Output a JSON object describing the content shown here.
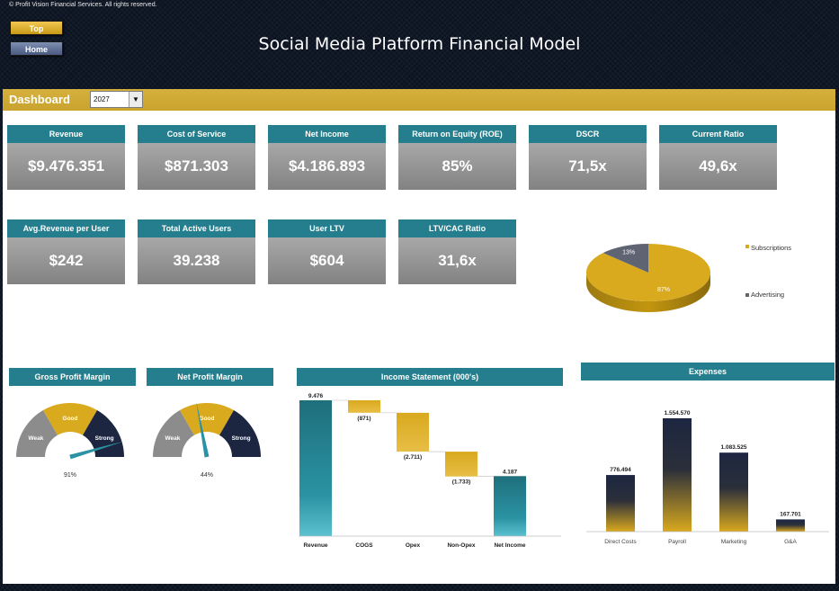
{
  "copyright": "© Profit Vision Financial Services. All rights reserved.",
  "nav": {
    "top_label": "Top",
    "home_label": "Home"
  },
  "title": "Social Media Platform Financial Model",
  "dashboard": {
    "label": "Dashboard",
    "year": "2027"
  },
  "kpis_row1": [
    {
      "label": "Revenue",
      "value": "$9.476.351"
    },
    {
      "label": "Cost of Service",
      "value": "$871.303"
    },
    {
      "label": "Net Income",
      "value": "$4.186.893"
    },
    {
      "label": "Return on Equity (ROE)",
      "value": "85%"
    },
    {
      "label": "DSCR",
      "value": "71,5x"
    },
    {
      "label": "Current Ratio",
      "value": "49,6x"
    }
  ],
  "kpis_row2": [
    {
      "label": "Avg.Revenue per User",
      "value": "$242"
    },
    {
      "label": "Total Active Users",
      "value": "39.238"
    },
    {
      "label": "User LTV",
      "value": "$604"
    },
    {
      "label": "LTV/CAC Ratio",
      "value": "31,6x"
    }
  ],
  "gauges": {
    "gross": {
      "title": "Gross Profit Margin",
      "value_label": "91%",
      "value": 91,
      "weak": "Weak",
      "good": "Good",
      "strong": "Strong"
    },
    "net": {
      "title": "Net Profit Margin",
      "value_label": "44%",
      "value": 44,
      "weak": "Weak",
      "good": "Good",
      "strong": "Strong"
    }
  },
  "colors": {
    "teal": "#257e8d",
    "gold": "#d9a91e",
    "navy": "#1c2640",
    "grey": "#8c8c8c",
    "background": "#0c1422"
  },
  "chart_data": [
    {
      "type": "pie",
      "labels": [
        "Subscriptions",
        "Advertising"
      ],
      "values": [
        87,
        13
      ],
      "value_labels": [
        "87%",
        "13%"
      ],
      "colors": [
        "#d9a91e",
        "#5f6473"
      ],
      "legend": "right"
    },
    {
      "type": "bar",
      "subtype": "waterfall",
      "title": "Income Statement (000's)",
      "categories": [
        "Revenue",
        "COGS",
        "Opex",
        "Non-Opex",
        "Net Income"
      ],
      "values": [
        9476,
        -871,
        -2711,
        -1733,
        4187
      ],
      "value_labels": [
        "9.476",
        "(871)",
        "(2.711)",
        "(1.733)",
        "4.187"
      ],
      "ylim": [
        0,
        9476
      ],
      "grid": false
    },
    {
      "type": "bar",
      "title": "Expenses",
      "categories": [
        "Direct Costs",
        "Payroll",
        "Marketing",
        "G&A"
      ],
      "values": [
        776494,
        1554570,
        1083525,
        167701
      ],
      "value_labels": [
        "776.494",
        "1.554.570",
        "1.083.525",
        "167.701"
      ],
      "ylim": [
        0,
        1554570
      ],
      "grid": false
    }
  ]
}
